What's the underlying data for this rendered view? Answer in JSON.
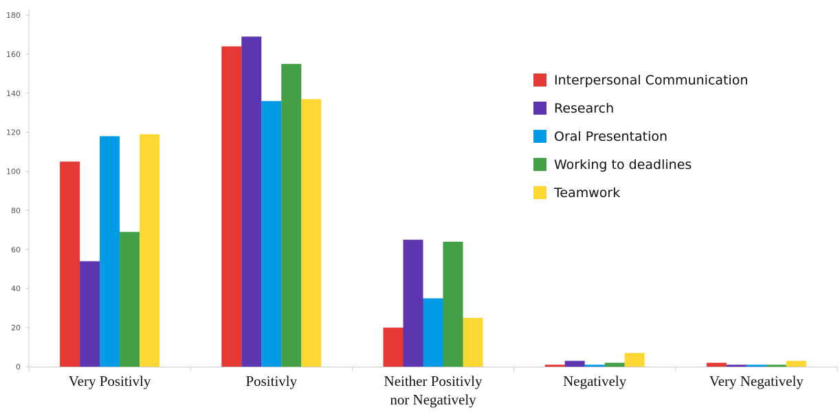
{
  "chart_data": {
    "type": "bar",
    "categories": [
      [
        "Very Positivly"
      ],
      [
        "Positivly"
      ],
      [
        "Neither Positivly",
        "nor  Negatively"
      ],
      [
        "Negatively"
      ],
      [
        "Very Negatively"
      ]
    ],
    "series": [
      {
        "name": "Interpersonal Communication",
        "color": "#e53935",
        "values": [
          105,
          164,
          20,
          1,
          2
        ]
      },
      {
        "name": "Research",
        "color": "#5e35b1",
        "values": [
          54,
          169,
          65,
          3,
          1
        ]
      },
      {
        "name": "Oral Presentation",
        "color": "#039be5",
        "values": [
          118,
          136,
          35,
          1,
          1
        ]
      },
      {
        "name": "Working to deadlines",
        "color": "#43a047",
        "values": [
          69,
          155,
          64,
          2,
          1
        ]
      },
      {
        "name": "Teamwork",
        "color": "#fdd835",
        "values": [
          119,
          137,
          25,
          7,
          3
        ]
      }
    ],
    "ylim": [
      0,
      180
    ],
    "yticks": [
      0,
      20,
      40,
      60,
      80,
      100,
      120,
      140,
      160,
      180
    ],
    "title": "",
    "xlabel": "",
    "ylabel": "",
    "grid": false,
    "legend_position": "right"
  }
}
